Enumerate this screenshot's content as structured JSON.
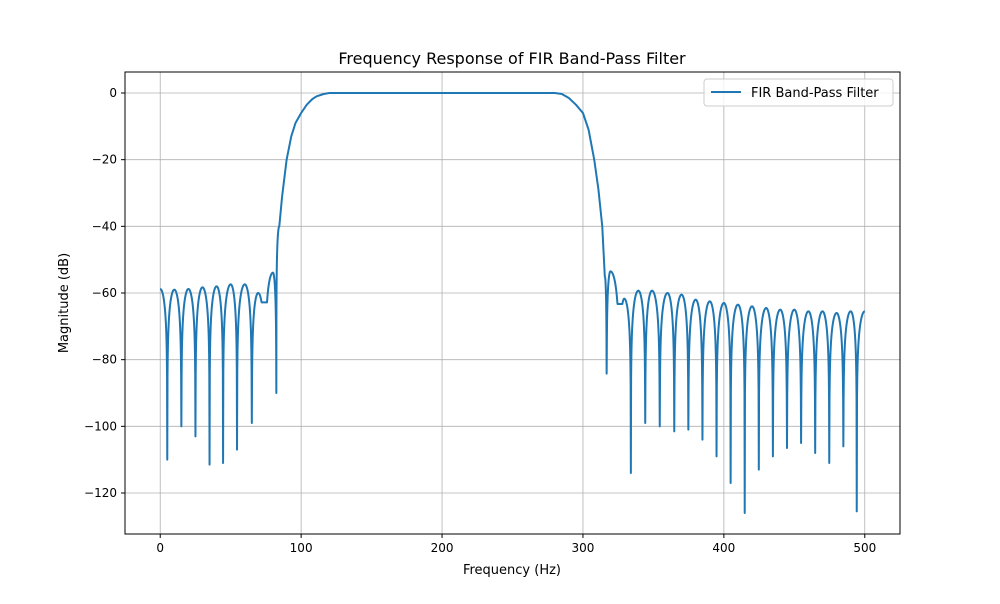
{
  "chart_data": {
    "type": "line",
    "title": "Frequency Response of FIR Band-Pass Filter",
    "xlabel": "Frequency (Hz)",
    "ylabel": "Magnitude (dB)",
    "xlim": [
      -25,
      525
    ],
    "ylim": [
      -132.3,
      6.3
    ],
    "xticks": [
      0,
      100,
      200,
      300,
      400,
      500
    ],
    "xtick_labels": [
      "0",
      "100",
      "200",
      "300",
      "400",
      "500"
    ],
    "yticks": [
      0,
      -20,
      -40,
      -60,
      -80,
      -100,
      -120
    ],
    "ytick_labels": [
      "0",
      "−20",
      "−40",
      "−60",
      "−80",
      "−100",
      "−120"
    ],
    "grid": true,
    "legend_position": "top-right",
    "series": [
      {
        "name": "FIR Band-Pass Filter",
        "color": "#1f77b4",
        "points": [
          [
            0,
            -58.8
          ],
          [
            5,
            -110
          ],
          [
            10,
            -59
          ],
          [
            15,
            -100
          ],
          [
            20,
            -58.8
          ],
          [
            25,
            -103
          ],
          [
            30,
            -58.3
          ],
          [
            35,
            -111.5
          ],
          [
            40,
            -58
          ],
          [
            44.6,
            -111
          ],
          [
            50,
            -57.4
          ],
          [
            54.5,
            -107
          ],
          [
            60,
            -57.4
          ],
          [
            65,
            -99
          ],
          [
            69.5,
            -60
          ],
          [
            74.5,
            -62.8
          ],
          [
            80,
            -53.9
          ],
          [
            82.4,
            -90
          ],
          [
            84.5,
            -40
          ],
          [
            86.5,
            -31
          ],
          [
            89.7,
            -20
          ],
          [
            93,
            -13
          ],
          [
            96,
            -9
          ],
          [
            100,
            -6
          ],
          [
            104,
            -3.5
          ],
          [
            108,
            -1.8
          ],
          [
            111,
            -1
          ],
          [
            116,
            -0.3
          ],
          [
            120,
            0
          ],
          [
            200,
            0
          ],
          [
            280,
            0
          ],
          [
            285,
            -0.3
          ],
          [
            290,
            -1.5
          ],
          [
            295,
            -3.5
          ],
          [
            300,
            -6
          ],
          [
            304,
            -11
          ],
          [
            308,
            -20
          ],
          [
            311,
            -29
          ],
          [
            313.7,
            -40
          ],
          [
            315.5,
            -55
          ],
          [
            316.8,
            -84.2
          ],
          [
            319.5,
            -53.5
          ],
          [
            325.8,
            -63.3
          ],
          [
            329.3,
            -61.7
          ],
          [
            334,
            -114
          ],
          [
            339.3,
            -59.3
          ],
          [
            344.2,
            -99
          ],
          [
            349,
            -59.3
          ],
          [
            354.5,
            -100
          ],
          [
            360,
            -60
          ],
          [
            364.8,
            -101.5
          ],
          [
            370,
            -60.5
          ],
          [
            374.8,
            -101
          ],
          [
            380,
            -62
          ],
          [
            384.8,
            -104
          ],
          [
            390,
            -62.5
          ],
          [
            394.8,
            -109
          ],
          [
            400,
            -63
          ],
          [
            404.8,
            -117
          ],
          [
            410,
            -63.5
          ],
          [
            414.8,
            -126
          ],
          [
            420,
            -64
          ],
          [
            424.8,
            -113
          ],
          [
            430,
            -64.5
          ],
          [
            434.8,
            -109
          ],
          [
            440,
            -65
          ],
          [
            444.8,
            -106.5
          ],
          [
            450,
            -65
          ],
          [
            454.8,
            -105
          ],
          [
            460,
            -65.5
          ],
          [
            464.8,
            -108
          ],
          [
            470,
            -65.5
          ],
          [
            474.8,
            -111
          ],
          [
            480,
            -66
          ],
          [
            484.8,
            -106
          ],
          [
            490,
            -65.5
          ],
          [
            494.3,
            -125.5
          ],
          [
            500,
            -65.5
          ]
        ]
      }
    ]
  }
}
